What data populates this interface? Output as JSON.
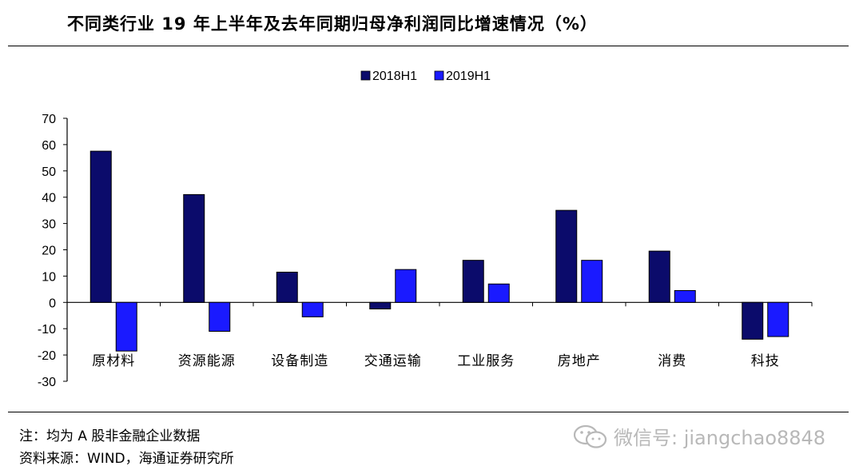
{
  "header": {
    "title": "不同类行业 19 年上半年及去年同期归母净利润同比增速情况（%）"
  },
  "footer": {
    "note": "注：均为 A 股非金融企业数据",
    "source": "资料来源：WIND，海通证券研究所"
  },
  "watermark": {
    "text": "微信号: jiangchao8848",
    "icon": "wechat-icon"
  },
  "chart_data": {
    "type": "bar",
    "categories": [
      "原材料",
      "资源能源",
      "设备制造",
      "交通运输",
      "工业服务",
      "房地产",
      "消费",
      "科技"
    ],
    "series": [
      {
        "name": "2018H1",
        "color": "#0b0b6b",
        "values": [
          57.5,
          41,
          11.5,
          -2.5,
          16,
          35,
          19.5,
          -14
        ]
      },
      {
        "name": "2019H1",
        "color": "#1a1aff",
        "values": [
          -18.5,
          -11,
          -5.5,
          12.5,
          7,
          16,
          4.5,
          -13
        ]
      }
    ],
    "ylim": [
      -30,
      70
    ],
    "yticks": [
      70,
      60,
      50,
      40,
      30,
      20,
      10,
      0,
      -10,
      -20,
      -30
    ],
    "grid": false,
    "legend": "top-center"
  }
}
